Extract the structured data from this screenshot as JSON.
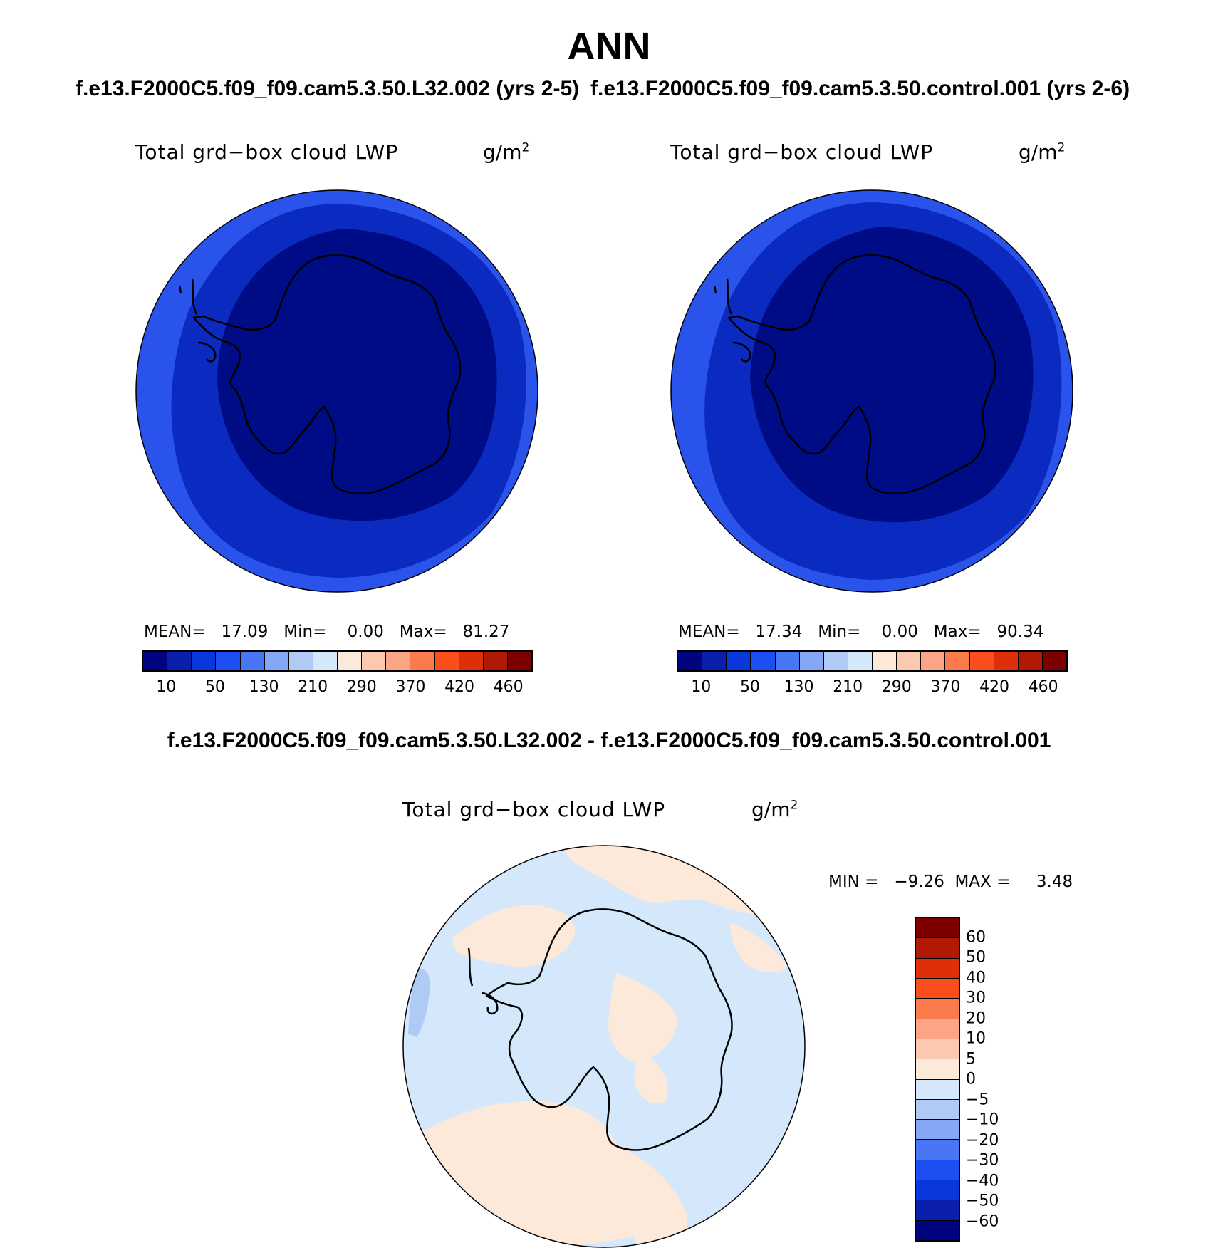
{
  "page": {
    "title": "ANN",
    "case1_title": "f.e13.F2000C5.f09_f09.cam5.3.50.L32.002 (yrs 2-5)",
    "case2_title": "f.e13.F2000C5.f09_f09.cam5.3.50.control.001 (yrs 2-6)",
    "diff_title": "f.e13.F2000C5.f09_f09.cam5.3.50.L32.002 - f.e13.F2000C5.f09_f09.cam5.3.50.control.001"
  },
  "panels": {
    "p1": {
      "variable": "Total grd−box cloud LWP",
      "units_base": "g/m",
      "units_exp": "2",
      "stats": "MEAN=   17.09   Min=    0.00   Max=   81.27",
      "colors": {
        "ring_outer": "#2a53ec",
        "ring_mid": "#0b2ac0",
        "core": "#000c86"
      }
    },
    "p2": {
      "variable": "Total grd−box cloud LWP",
      "units_base": "g/m",
      "units_exp": "2",
      "stats": "MEAN=   17.34   Min=    0.00   Max=   90.34",
      "colors": {
        "ring_outer": "#2a53ec",
        "ring_mid": "#0b2ac0",
        "core": "#000c86"
      }
    },
    "diff": {
      "variable": "Total grd−box cloud LWP",
      "units_base": "g/m",
      "units_exp": "2",
      "stats": "MIN =   −9.26  MAX =     3.48",
      "colors": {
        "positive": "#fde9d9",
        "negative": "#d5e8fb",
        "strong_negative": "#aecbf5"
      }
    }
  },
  "colorbar_main": {
    "colors": [
      "#00057f",
      "#0a20ad",
      "#0838db",
      "#1c4ef2",
      "#4876f4",
      "#84a8f6",
      "#b1c9f5",
      "#d5e8fb",
      "#fde9d9",
      "#fcc8b0",
      "#fba586",
      "#fb7b4d",
      "#fa4f1c",
      "#df2f08",
      "#b01a05",
      "#7d0000"
    ],
    "tick_labels": [
      "10",
      "50",
      "130",
      "210",
      "290",
      "370",
      "420",
      "460"
    ]
  },
  "colorbar_diff": {
    "colors": [
      "#7d0000",
      "#b01a05",
      "#df2f08",
      "#fa4f1c",
      "#fb7b4d",
      "#fba586",
      "#fcc8b0",
      "#fde9d9",
      "#d5e8fb",
      "#b1c9f5",
      "#84a8f6",
      "#4876f4",
      "#1c4ef2",
      "#0838db",
      "#0a20ad",
      "#00057f"
    ],
    "tick_labels": [
      "60",
      "50",
      "40",
      "30",
      "20",
      "10",
      "5",
      "0",
      "−5",
      "−10",
      "−20",
      "−30",
      "−40",
      "−50",
      "−60"
    ]
  }
}
